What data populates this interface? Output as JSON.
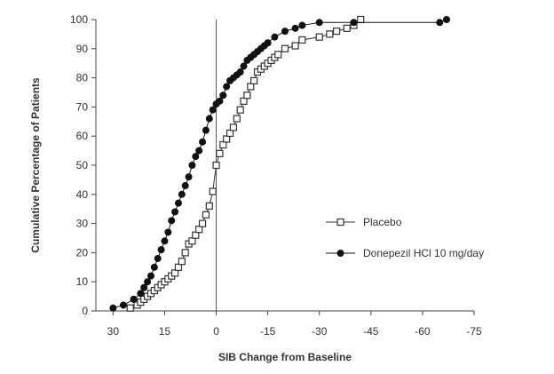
{
  "chart_data": {
    "type": "line",
    "title": "",
    "xlabel": "SIB Change from Baseline",
    "ylabel": "Cumulative Percentage of Patients",
    "xlim": [
      35,
      -75
    ],
    "ylim": [
      0,
      100
    ],
    "x_reversed": true,
    "x_ticks": [
      30,
      15,
      0,
      -15,
      -30,
      -45,
      -60,
      -75
    ],
    "x_tick_labels": [
      "30",
      "15",
      "0",
      "-15",
      "-30",
      "-45",
      "-60",
      "-75"
    ],
    "y_ticks": [
      0,
      10,
      20,
      30,
      40,
      50,
      60,
      70,
      80,
      90,
      100
    ],
    "y_tick_labels": [
      "0",
      "10",
      "20",
      "30",
      "40",
      "50",
      "60",
      "70",
      "80",
      "90",
      "100"
    ],
    "reference_line_x": 0,
    "legend_position": "right",
    "grid": false,
    "series": [
      {
        "name": "Placebo",
        "marker": "open-square",
        "color": "#333333",
        "x": [
          25,
          23,
          22,
          21,
          20,
          19,
          18,
          17,
          16,
          15,
          14,
          13,
          12,
          11,
          10,
          9,
          8,
          7,
          6,
          5,
          4,
          3,
          2,
          1,
          0,
          -1,
          -2,
          -3,
          -4,
          -5,
          -6,
          -7,
          -8,
          -9,
          -10,
          -11,
          -12,
          -13,
          -14,
          -15,
          -16,
          -17,
          -18,
          -20,
          -23,
          -25,
          -30,
          -33,
          -35,
          -38,
          -40,
          -42
        ],
        "y": [
          1,
          2,
          3,
          4,
          5,
          6,
          7,
          8,
          9,
          10,
          11,
          12,
          13,
          15,
          17,
          20,
          23,
          24,
          26,
          28,
          30,
          33,
          36,
          41,
          50,
          54,
          57,
          59,
          61,
          63,
          66,
          69,
          72,
          74,
          77,
          79,
          82,
          83,
          84,
          85,
          86,
          87,
          88,
          90,
          91,
          93,
          94,
          95,
          96,
          97,
          98,
          100
        ]
      },
      {
        "name": "Donepezil HCl 10 mg/day",
        "marker": "filled-circle",
        "color": "#111111",
        "x": [
          30,
          27,
          24,
          22,
          21,
          20,
          19,
          18,
          17,
          16,
          15,
          14,
          13,
          12,
          11,
          10,
          9,
          8,
          7,
          6,
          5,
          4,
          3,
          2,
          1,
          0,
          -1,
          -2,
          -3,
          -4,
          -5,
          -6,
          -7,
          -8,
          -9,
          -10,
          -11,
          -12,
          -13,
          -14,
          -15,
          -17,
          -20,
          -23,
          -25,
          -30,
          -40,
          -65,
          -67
        ],
        "y": [
          1,
          2,
          4,
          6,
          8,
          10,
          12,
          15,
          18,
          21,
          24,
          27,
          31,
          34,
          37,
          40,
          43,
          46,
          50,
          53,
          55,
          58,
          62,
          66,
          69,
          71,
          72,
          74,
          77,
          79,
          80,
          81,
          82,
          84,
          86,
          87,
          88,
          89,
          90,
          91,
          92,
          94,
          96,
          97,
          98,
          99,
          99,
          99,
          100
        ]
      }
    ]
  }
}
